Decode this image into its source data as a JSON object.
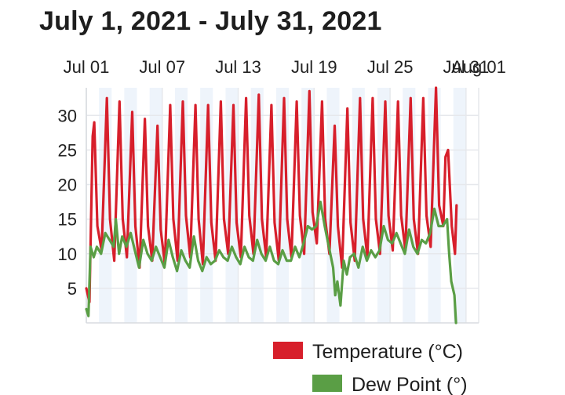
{
  "title": "July 1, 2021 - July 31, 2021",
  "colors": {
    "temperature": "#d71f2b",
    "dew_point": "#5a9e45",
    "grid": "#e6e8ec",
    "band": "#eef4fb",
    "tick_text": "#222222"
  },
  "chart_data": {
    "type": "line",
    "title": "July 1, 2021 - July 31, 2021",
    "xlabel": "",
    "ylabel": "",
    "x_tick_labels": [
      "Jul 01",
      "Jul 07",
      "Jul 13",
      "Jul 19",
      "Jul 25",
      "Jul 31",
      "Aug 01"
    ],
    "x_axis_position": "top",
    "y_ticks": [
      5,
      10,
      15,
      20,
      25,
      30
    ],
    "ylim": [
      0,
      34
    ],
    "xlim": [
      "2021-07-01",
      "2021-08-01"
    ],
    "grid": true,
    "alternating_day_bands": true,
    "legend_position": "bottom-right",
    "series": [
      {
        "name": "Temperature (°C)",
        "color": "#d71f2b",
        "points": [
          [
            "2021-07-01 00:00",
            5.0
          ],
          [
            "2021-07-01 06:00",
            3.0
          ],
          [
            "2021-07-01 12:00",
            27.0
          ],
          [
            "2021-07-01 15:00",
            29.0
          ],
          [
            "2021-07-01 21:00",
            14.0
          ],
          [
            "2021-07-02 05:00",
            10.5
          ],
          [
            "2021-07-02 15:00",
            32.5
          ],
          [
            "2021-07-02 21:00",
            15.0
          ],
          [
            "2021-07-03 05:00",
            9.0
          ],
          [
            "2021-07-03 15:00",
            32.0
          ],
          [
            "2021-07-03 21:00",
            15.0
          ],
          [
            "2021-07-04 05:00",
            9.5
          ],
          [
            "2021-07-04 15:00",
            30.5
          ],
          [
            "2021-07-04 21:00",
            14.0
          ],
          [
            "2021-07-05 05:00",
            8.0
          ],
          [
            "2021-07-05 15:00",
            29.5
          ],
          [
            "2021-07-05 21:00",
            14.0
          ],
          [
            "2021-07-06 05:00",
            9.0
          ],
          [
            "2021-07-06 15:00",
            28.5
          ],
          [
            "2021-07-06 21:00",
            13.5
          ],
          [
            "2021-07-07 05:00",
            8.5
          ],
          [
            "2021-07-07 15:00",
            31.5
          ],
          [
            "2021-07-07 21:00",
            15.0
          ],
          [
            "2021-07-08 05:00",
            9.0
          ],
          [
            "2021-07-08 15:00",
            32.0
          ],
          [
            "2021-07-08 21:00",
            15.5
          ],
          [
            "2021-07-09 05:00",
            9.5
          ],
          [
            "2021-07-09 15:00",
            31.5
          ],
          [
            "2021-07-09 21:00",
            15.0
          ],
          [
            "2021-07-10 05:00",
            8.5
          ],
          [
            "2021-07-10 15:00",
            31.5
          ],
          [
            "2021-07-10 21:00",
            14.5
          ],
          [
            "2021-07-11 05:00",
            9.0
          ],
          [
            "2021-07-11 15:00",
            32.0
          ],
          [
            "2021-07-11 21:00",
            15.0
          ],
          [
            "2021-07-12 05:00",
            10.0
          ],
          [
            "2021-07-12 15:00",
            31.5
          ],
          [
            "2021-07-12 21:00",
            14.5
          ],
          [
            "2021-07-13 05:00",
            9.5
          ],
          [
            "2021-07-13 15:00",
            32.5
          ],
          [
            "2021-07-13 21:00",
            15.5
          ],
          [
            "2021-07-14 05:00",
            10.0
          ],
          [
            "2021-07-14 15:00",
            33.0
          ],
          [
            "2021-07-14 21:00",
            15.0
          ],
          [
            "2021-07-15 05:00",
            9.5
          ],
          [
            "2021-07-15 15:00",
            31.5
          ],
          [
            "2021-07-15 21:00",
            14.5
          ],
          [
            "2021-07-16 05:00",
            9.0
          ],
          [
            "2021-07-16 15:00",
            32.5
          ],
          [
            "2021-07-16 21:00",
            15.0
          ],
          [
            "2021-07-17 05:00",
            9.5
          ],
          [
            "2021-07-17 15:00",
            32.0
          ],
          [
            "2021-07-17 21:00",
            15.5
          ],
          [
            "2021-07-18 05:00",
            10.0
          ],
          [
            "2021-07-18 15:00",
            33.5
          ],
          [
            "2021-07-18 21:00",
            16.0
          ],
          [
            "2021-07-19 05:00",
            11.5
          ],
          [
            "2021-07-19 15:00",
            32.0
          ],
          [
            "2021-07-19 21:00",
            15.0
          ],
          [
            "2021-07-20 05:00",
            10.0
          ],
          [
            "2021-07-20 15:00",
            28.5
          ],
          [
            "2021-07-20 21:00",
            14.0
          ],
          [
            "2021-07-21 05:00",
            8.0
          ],
          [
            "2021-07-21 15:00",
            31.0
          ],
          [
            "2021-07-21 21:00",
            14.5
          ],
          [
            "2021-07-22 05:00",
            9.0
          ],
          [
            "2021-07-22 15:00",
            32.5
          ],
          [
            "2021-07-22 21:00",
            15.0
          ],
          [
            "2021-07-23 05:00",
            9.5
          ],
          [
            "2021-07-23 15:00",
            32.5
          ],
          [
            "2021-07-23 21:00",
            15.0
          ],
          [
            "2021-07-24 05:00",
            10.0
          ],
          [
            "2021-07-24 15:00",
            32.0
          ],
          [
            "2021-07-24 21:00",
            15.5
          ],
          [
            "2021-07-25 05:00",
            10.5
          ],
          [
            "2021-07-25 15:00",
            32.0
          ],
          [
            "2021-07-25 21:00",
            15.5
          ],
          [
            "2021-07-26 05:00",
            10.5
          ],
          [
            "2021-07-26 15:00",
            32.5
          ],
          [
            "2021-07-26 21:00",
            15.0
          ],
          [
            "2021-07-27 05:00",
            10.0
          ],
          [
            "2021-07-27 15:00",
            32.5
          ],
          [
            "2021-07-27 21:00",
            15.5
          ],
          [
            "2021-07-28 05:00",
            11.0
          ],
          [
            "2021-07-28 15:00",
            34.0
          ],
          [
            "2021-07-28 21:00",
            17.0
          ],
          [
            "2021-07-29 05:00",
            14.0
          ],
          [
            "2021-07-29 09:00",
            24.0
          ],
          [
            "2021-07-29 14:00",
            25.0
          ],
          [
            "2021-07-29 21:00",
            14.0
          ],
          [
            "2021-07-30 03:00",
            10.0
          ],
          [
            "2021-07-30 06:00",
            17.0
          ]
        ]
      },
      {
        "name": "Dew Point (°)",
        "color": "#5a9e45",
        "points": [
          [
            "2021-07-01 00:00",
            2.0
          ],
          [
            "2021-07-01 04:00",
            1.0
          ],
          [
            "2021-07-01 08:00",
            11.0
          ],
          [
            "2021-07-01 14:00",
            9.5
          ],
          [
            "2021-07-01 20:00",
            11.0
          ],
          [
            "2021-07-02 04:00",
            10.0
          ],
          [
            "2021-07-02 12:00",
            13.0
          ],
          [
            "2021-07-02 20:00",
            12.0
          ],
          [
            "2021-07-03 04:00",
            11.0
          ],
          [
            "2021-07-03 08:00",
            15.0
          ],
          [
            "2021-07-03 14:00",
            10.0
          ],
          [
            "2021-07-03 20:00",
            12.5
          ],
          [
            "2021-07-04 04:00",
            11.0
          ],
          [
            "2021-07-04 12:00",
            13.0
          ],
          [
            "2021-07-04 20:00",
            10.5
          ],
          [
            "2021-07-05 04:00",
            8.0
          ],
          [
            "2021-07-05 12:00",
            12.0
          ],
          [
            "2021-07-05 20:00",
            10.0
          ],
          [
            "2021-07-06 04:00",
            9.0
          ],
          [
            "2021-07-06 12:00",
            11.0
          ],
          [
            "2021-07-06 20:00",
            9.5
          ],
          [
            "2021-07-07 04:00",
            8.0
          ],
          [
            "2021-07-07 12:00",
            12.0
          ],
          [
            "2021-07-07 20:00",
            9.5
          ],
          [
            "2021-07-08 04:00",
            7.5
          ],
          [
            "2021-07-08 12:00",
            10.5
          ],
          [
            "2021-07-08 20:00",
            9.0
          ],
          [
            "2021-07-09 04:00",
            8.0
          ],
          [
            "2021-07-09 12:00",
            12.5
          ],
          [
            "2021-07-09 20:00",
            9.0
          ],
          [
            "2021-07-10 04:00",
            7.5
          ],
          [
            "2021-07-10 12:00",
            9.5
          ],
          [
            "2021-07-10 20:00",
            8.5
          ],
          [
            "2021-07-11 04:00",
            9.0
          ],
          [
            "2021-07-11 12:00",
            10.5
          ],
          [
            "2021-07-11 20:00",
            9.5
          ],
          [
            "2021-07-12 04:00",
            9.0
          ],
          [
            "2021-07-12 12:00",
            11.0
          ],
          [
            "2021-07-12 20:00",
            9.5
          ],
          [
            "2021-07-13 04:00",
            8.5
          ],
          [
            "2021-07-13 12:00",
            11.0
          ],
          [
            "2021-07-13 20:00",
            9.5
          ],
          [
            "2021-07-14 04:00",
            9.0
          ],
          [
            "2021-07-14 12:00",
            12.0
          ],
          [
            "2021-07-14 20:00",
            10.0
          ],
          [
            "2021-07-15 04:00",
            9.0
          ],
          [
            "2021-07-15 12:00",
            11.0
          ],
          [
            "2021-07-15 20:00",
            9.0
          ],
          [
            "2021-07-16 04:00",
            8.5
          ],
          [
            "2021-07-16 12:00",
            10.5
          ],
          [
            "2021-07-16 20:00",
            9.0
          ],
          [
            "2021-07-17 04:00",
            9.0
          ],
          [
            "2021-07-17 12:00",
            11.0
          ],
          [
            "2021-07-17 20:00",
            9.5
          ],
          [
            "2021-07-18 04:00",
            11.5
          ],
          [
            "2021-07-18 12:00",
            14.0
          ],
          [
            "2021-07-18 20:00",
            13.5
          ],
          [
            "2021-07-19 04:00",
            14.0
          ],
          [
            "2021-07-19 12:00",
            17.5
          ],
          [
            "2021-07-19 20:00",
            14.0
          ],
          [
            "2021-07-20 04:00",
            11.0
          ],
          [
            "2021-07-20 12:00",
            8.0
          ],
          [
            "2021-07-20 16:00",
            4.0
          ],
          [
            "2021-07-20 20:00",
            6.0
          ],
          [
            "2021-07-21 02:00",
            2.5
          ],
          [
            "2021-07-21 08:00",
            9.0
          ],
          [
            "2021-07-21 14:00",
            7.0
          ],
          [
            "2021-07-21 20:00",
            9.5
          ],
          [
            "2021-07-22 04:00",
            10.0
          ],
          [
            "2021-07-22 12:00",
            8.0
          ],
          [
            "2021-07-22 20:00",
            11.0
          ],
          [
            "2021-07-23 04:00",
            9.0
          ],
          [
            "2021-07-23 12:00",
            10.5
          ],
          [
            "2021-07-23 20:00",
            9.5
          ],
          [
            "2021-07-24 04:00",
            10.5
          ],
          [
            "2021-07-24 12:00",
            14.0
          ],
          [
            "2021-07-24 20:00",
            12.0
          ],
          [
            "2021-07-25 04:00",
            11.5
          ],
          [
            "2021-07-25 12:00",
            13.0
          ],
          [
            "2021-07-25 20:00",
            11.5
          ],
          [
            "2021-07-26 04:00",
            10.0
          ],
          [
            "2021-07-26 12:00",
            13.5
          ],
          [
            "2021-07-26 20:00",
            11.0
          ],
          [
            "2021-07-27 04:00",
            10.0
          ],
          [
            "2021-07-27 12:00",
            12.0
          ],
          [
            "2021-07-27 20:00",
            11.5
          ],
          [
            "2021-07-28 04:00",
            13.0
          ],
          [
            "2021-07-28 12:00",
            16.5
          ],
          [
            "2021-07-28 20:00",
            14.0
          ],
          [
            "2021-07-29 04:00",
            14.0
          ],
          [
            "2021-07-29 12:00",
            15.0
          ],
          [
            "2021-07-29 16:00",
            10.0
          ],
          [
            "2021-07-29 20:00",
            6.0
          ],
          [
            "2021-07-30 02:00",
            4.0
          ],
          [
            "2021-07-30 05:00",
            0.0
          ]
        ]
      }
    ]
  }
}
